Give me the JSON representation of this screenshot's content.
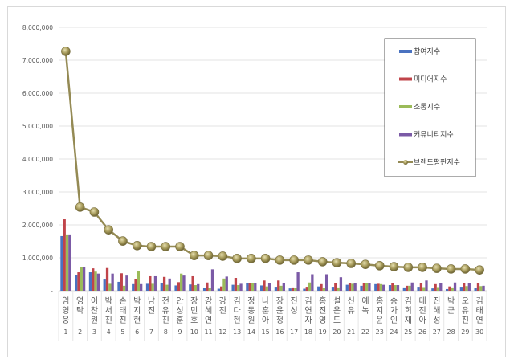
{
  "chart_data": {
    "type": "bar+line",
    "title": "",
    "xlabel": "",
    "ylabel": "",
    "ylim": [
      0,
      8000000
    ],
    "yticks": [
      "-",
      "1,000,000",
      "2,000,000",
      "3,000,000",
      "4,000,000",
      "5,000,000",
      "6,000,000",
      "7,000,000",
      "8,000,000"
    ],
    "grid": true,
    "legend_position": "right-inside",
    "categories": [
      "임영웅",
      "영탁",
      "이찬원",
      "박서진",
      "손태진",
      "박지현",
      "남진",
      "전유진",
      "안성훈",
      "장민호",
      "강혜연",
      "강진",
      "김다현",
      "정동원",
      "나훈아",
      "장윤정",
      "진성",
      "김연자",
      "홍진영",
      "설운도",
      "신유",
      "예녹",
      "홍지윤",
      "송가인",
      "김희재",
      "태진아",
      "진해성",
      "박군",
      "오유진",
      "김태연"
    ],
    "ranks": [
      1,
      2,
      3,
      4,
      5,
      6,
      7,
      8,
      9,
      10,
      11,
      12,
      13,
      14,
      15,
      16,
      17,
      18,
      19,
      20,
      21,
      22,
      23,
      24,
      25,
      26,
      27,
      28,
      29,
      30
    ],
    "series": [
      {
        "name": "참여지수",
        "type": "bar",
        "color": "#4a72c0",
        "values": [
          1660000,
          480000,
          560000,
          340000,
          270000,
          200000,
          210000,
          220000,
          160000,
          190000,
          90000,
          60000,
          180000,
          240000,
          160000,
          120000,
          70000,
          60000,
          130000,
          120000,
          180000,
          150000,
          200000,
          170000,
          100000,
          120000,
          70000,
          50000,
          120000,
          80000
        ]
      },
      {
        "name": "미디어지수",
        "type": "bar",
        "color": "#c0444a",
        "values": [
          2170000,
          560000,
          680000,
          690000,
          530000,
          350000,
          440000,
          420000,
          260000,
          440000,
          250000,
          130000,
          390000,
          220000,
          310000,
          310000,
          100000,
          120000,
          200000,
          220000,
          220000,
          230000,
          210000,
          230000,
          150000,
          230000,
          200000,
          130000,
          220000,
          230000
        ]
      },
      {
        "name": "소통지수",
        "type": "bar",
        "color": "#9bbb59",
        "values": [
          1710000,
          730000,
          580000,
          210000,
          150000,
          590000,
          210000,
          180000,
          520000,
          170000,
          80000,
          370000,
          170000,
          220000,
          130000,
          150000,
          90000,
          250000,
          80000,
          100000,
          210000,
          220000,
          200000,
          170000,
          150000,
          110000,
          110000,
          100000,
          140000,
          140000
        ]
      },
      {
        "name": "커뮤니티지수",
        "type": "bar",
        "color": "#7b5aa6",
        "values": [
          1710000,
          730000,
          520000,
          520000,
          460000,
          200000,
          440000,
          370000,
          460000,
          200000,
          650000,
          430000,
          210000,
          230000,
          240000,
          230000,
          560000,
          500000,
          500000,
          410000,
          220000,
          220000,
          180000,
          170000,
          250000,
          310000,
          240000,
          250000,
          240000,
          150000
        ]
      },
      {
        "name": "브랜드평판지수",
        "type": "line",
        "color": "#948a54",
        "values": [
          7270000,
          2540000,
          2390000,
          1850000,
          1510000,
          1370000,
          1340000,
          1340000,
          1340000,
          1070000,
          1070000,
          1050000,
          980000,
          980000,
          980000,
          930000,
          930000,
          930000,
          880000,
          850000,
          830000,
          800000,
          760000,
          730000,
          710000,
          710000,
          680000,
          660000,
          660000,
          630000
        ]
      }
    ]
  },
  "legend": {
    "items": [
      {
        "label": "참여지수",
        "color": "#4a72c0",
        "kind": "bar"
      },
      {
        "label": "미디어지수",
        "color": "#c0444a",
        "kind": "bar"
      },
      {
        "label": "소통지수",
        "color": "#9bbb59",
        "kind": "bar"
      },
      {
        "label": "커뮤니티지수",
        "color": "#7b5aa6",
        "kind": "bar"
      },
      {
        "label": "브랜드평판지수",
        "color": "#948a54",
        "kind": "line"
      }
    ]
  }
}
